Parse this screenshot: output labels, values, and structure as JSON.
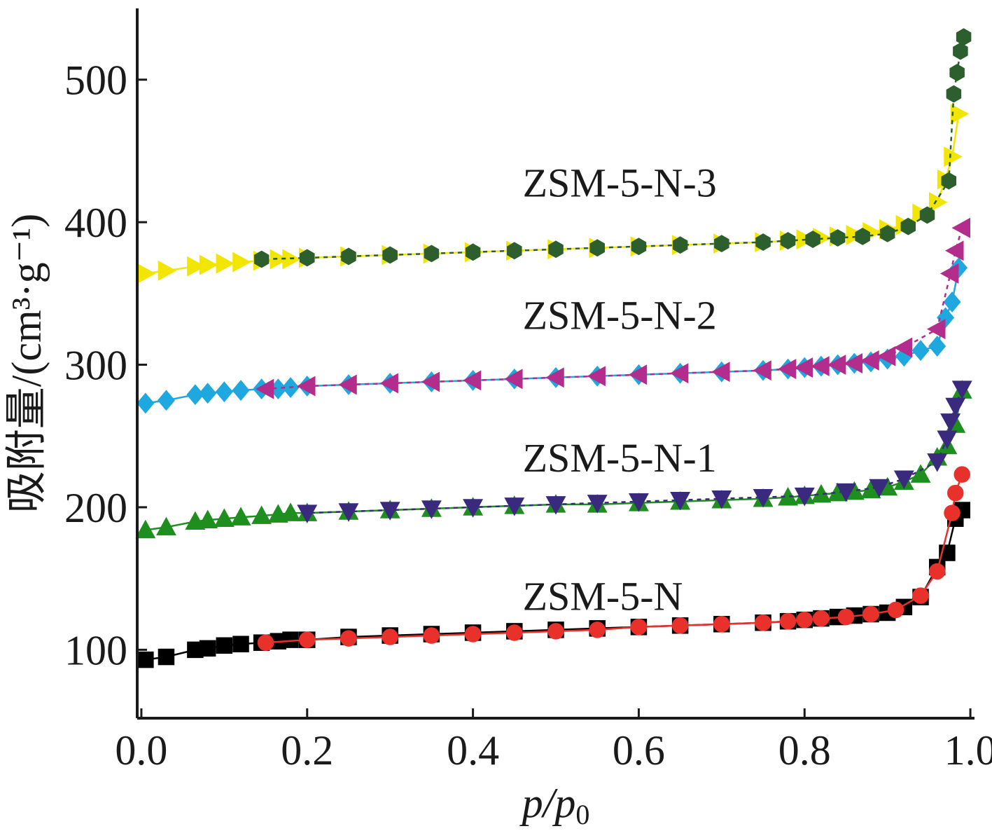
{
  "chart_data": {
    "type": "line",
    "xlabel": "p/p",
    "xlabel_sub": "0",
    "ylabel": "吸附量/(cm³·g⁻¹)",
    "xlim": [
      -0.005,
      1.005
    ],
    "ylim": [
      52,
      550
    ],
    "x_ticks": [
      "0.0",
      "0.2",
      "0.4",
      "0.6",
      "0.8",
      "1.0"
    ],
    "x_tick_values": [
      0.0,
      0.2,
      0.4,
      0.6,
      0.8,
      1.0
    ],
    "y_ticks": [
      "100",
      "200",
      "300",
      "400",
      "500"
    ],
    "y_tick_values": [
      100,
      200,
      300,
      400,
      500
    ],
    "grid": false,
    "legend": "none",
    "curve_labels": [
      {
        "text": "ZSM-5-N-3",
        "x": 0.46,
        "y": 418
      },
      {
        "text": "ZSM-5-N-2",
        "x": 0.46,
        "y": 325
      },
      {
        "text": "ZSM-5-N-1",
        "x": 0.46,
        "y": 225
      },
      {
        "text": "ZSM-5-N",
        "x": 0.46,
        "y": 128
      }
    ],
    "series": [
      {
        "group": "ZSM-5-N",
        "branch": "adsorption",
        "color": "#000000",
        "marker": "square",
        "dash": "",
        "x": [
          0.005,
          0.03,
          0.065,
          0.08,
          0.1,
          0.12,
          0.145,
          0.165,
          0.18,
          0.2,
          0.25,
          0.3,
          0.35,
          0.4,
          0.45,
          0.5,
          0.55,
          0.6,
          0.65,
          0.7,
          0.75,
          0.78,
          0.8,
          0.82,
          0.84,
          0.86,
          0.88,
          0.9,
          0.92,
          0.94,
          0.96,
          0.972,
          0.982,
          0.99
        ],
        "y": [
          93,
          95,
          100,
          101,
          103,
          104,
          105,
          106,
          107,
          107,
          109,
          110,
          111,
          112,
          113,
          114,
          115,
          116,
          117,
          118,
          119,
          120,
          121,
          122,
          123,
          124,
          125,
          126,
          130,
          137,
          158,
          168,
          192,
          198
        ]
      },
      {
        "group": "ZSM-5-N",
        "branch": "desorption",
        "color": "#e8312b",
        "marker": "circle",
        "dash": "",
        "x": [
          0.99,
          0.982,
          0.978,
          0.96,
          0.94,
          0.91,
          0.88,
          0.85,
          0.82,
          0.8,
          0.78,
          0.75,
          0.7,
          0.65,
          0.6,
          0.55,
          0.5,
          0.45,
          0.4,
          0.35,
          0.3,
          0.25,
          0.2,
          0.15
        ],
        "y": [
          223,
          210,
          196,
          155,
          138,
          128,
          125,
          123,
          122,
          121,
          120,
          119,
          118,
          117,
          116,
          114,
          113,
          112,
          111,
          110,
          109,
          108,
          107,
          105
        ]
      },
      {
        "group": "ZSM-5-N-1",
        "branch": "adsorption",
        "color": "#1e8e1e",
        "marker": "triangle-up",
        "dash": "",
        "x": [
          0.005,
          0.03,
          0.065,
          0.08,
          0.1,
          0.12,
          0.145,
          0.165,
          0.18,
          0.2,
          0.25,
          0.3,
          0.35,
          0.4,
          0.45,
          0.5,
          0.55,
          0.6,
          0.65,
          0.7,
          0.75,
          0.78,
          0.8,
          0.82,
          0.84,
          0.86,
          0.88,
          0.9,
          0.92,
          0.94,
          0.96,
          0.972,
          0.982,
          0.99
        ],
        "y": [
          184,
          186,
          190,
          191,
          192,
          193,
          194,
          195,
          196,
          196,
          197,
          198,
          199,
          200,
          201,
          202,
          202,
          203,
          204,
          205,
          206,
          207,
          208,
          209,
          210,
          211,
          212,
          214,
          218,
          223,
          235,
          243,
          258,
          282
        ]
      },
      {
        "group": "ZSM-5-N-1",
        "branch": "desorption",
        "color": "#3a2a7d",
        "marker": "triangle-down",
        "dash": "6,6",
        "x": [
          0.99,
          0.982,
          0.976,
          0.972,
          0.96,
          0.92,
          0.89,
          0.85,
          0.8,
          0.75,
          0.7,
          0.65,
          0.6,
          0.55,
          0.5,
          0.45,
          0.4,
          0.35,
          0.3,
          0.25,
          0.2
        ],
        "y": [
          283,
          271,
          260,
          248,
          232,
          220,
          214,
          211,
          208,
          207,
          206,
          205,
          204,
          203,
          202,
          201,
          200,
          199,
          198,
          197,
          196
        ]
      },
      {
        "group": "ZSM-5-N-2",
        "branch": "adsorption",
        "color": "#1ea8df",
        "marker": "diamond",
        "dash": "",
        "x": [
          0.005,
          0.03,
          0.065,
          0.08,
          0.1,
          0.12,
          0.145,
          0.165,
          0.18,
          0.2,
          0.25,
          0.3,
          0.35,
          0.4,
          0.45,
          0.5,
          0.55,
          0.6,
          0.65,
          0.7,
          0.75,
          0.78,
          0.8,
          0.82,
          0.84,
          0.86,
          0.88,
          0.9,
          0.92,
          0.94,
          0.96,
          0.97,
          0.978,
          0.986
        ],
        "y": [
          273,
          275,
          279,
          280,
          281,
          282,
          283,
          283,
          284,
          285,
          286,
          287,
          288,
          289,
          290,
          291,
          292,
          293,
          294,
          295,
          296,
          297,
          298,
          299,
          300,
          301,
          302,
          304,
          306,
          310,
          313,
          333,
          344,
          368
        ]
      },
      {
        "group": "ZSM-5-N-2",
        "branch": "desorption",
        "color": "#b32d8c",
        "marker": "triangle-left",
        "dash": "6,6",
        "x": [
          0.99,
          0.982,
          0.976,
          0.96,
          0.92,
          0.9,
          0.88,
          0.86,
          0.84,
          0.82,
          0.8,
          0.78,
          0.75,
          0.7,
          0.65,
          0.6,
          0.55,
          0.5,
          0.45,
          0.4,
          0.35,
          0.3,
          0.25,
          0.2,
          0.15
        ],
        "y": [
          396,
          380,
          364,
          325,
          312,
          306,
          303,
          301,
          300,
          299,
          298,
          297,
          296,
          295,
          294,
          293,
          292,
          291,
          290,
          289,
          288,
          287,
          286,
          285,
          283
        ]
      },
      {
        "group": "ZSM-5-N-3",
        "branch": "adsorption",
        "color": "#f2e600",
        "marker": "triangle-right",
        "dash": "",
        "x": [
          0.005,
          0.03,
          0.065,
          0.08,
          0.1,
          0.12,
          0.145,
          0.165,
          0.18,
          0.2,
          0.25,
          0.3,
          0.35,
          0.4,
          0.45,
          0.5,
          0.55,
          0.6,
          0.65,
          0.7,
          0.75,
          0.78,
          0.8,
          0.82,
          0.84,
          0.86,
          0.88,
          0.9,
          0.92,
          0.94,
          0.96,
          0.97,
          0.978,
          0.986
        ],
        "y": [
          364,
          366,
          369,
          370,
          371,
          372,
          373,
          374,
          374,
          375,
          376,
          377,
          378,
          379,
          380,
          381,
          382,
          383,
          384,
          385,
          386,
          387,
          388,
          389,
          390,
          391,
          393,
          395,
          398,
          406,
          414,
          430,
          446,
          476
        ]
      },
      {
        "group": "ZSM-5-N-3",
        "branch": "desorption",
        "color": "#2d5e2d",
        "marker": "hexagon",
        "dash": "6,6",
        "x": [
          0.992,
          0.988,
          0.984,
          0.98,
          0.974,
          0.948,
          0.925,
          0.9,
          0.87,
          0.84,
          0.81,
          0.78,
          0.75,
          0.7,
          0.65,
          0.6,
          0.55,
          0.5,
          0.45,
          0.4,
          0.35,
          0.3,
          0.25,
          0.2,
          0.145
        ],
        "y": [
          530,
          520,
          505,
          490,
          429,
          405,
          397,
          392,
          390,
          389,
          388,
          387,
          386,
          385,
          384,
          383,
          382,
          381,
          380,
          379,
          378,
          377,
          376,
          375,
          374
        ]
      }
    ]
  }
}
